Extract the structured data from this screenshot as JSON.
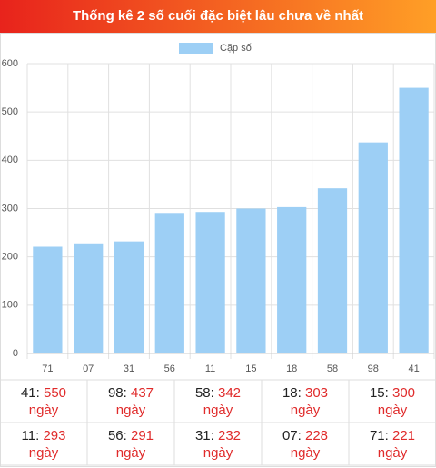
{
  "chart_data": {
    "type": "bar",
    "title": "Thống kê 2 số cuối đặc biệt lâu chưa về nhất",
    "categories": [
      "71",
      "07",
      "31",
      "56",
      "11",
      "15",
      "18",
      "58",
      "98",
      "41"
    ],
    "series": [
      {
        "name": "Cặp số",
        "color": "#9dcff5",
        "values": [
          221,
          228,
          232,
          291,
          293,
          300,
          303,
          342,
          437,
          550
        ]
      }
    ],
    "ylim": [
      0,
      600
    ],
    "yticks": [
      0,
      100,
      200,
      300,
      400,
      500,
      600
    ],
    "grid": true,
    "legend": "top"
  },
  "summary": {
    "unit": "ngày",
    "rows": [
      [
        [
          "41",
          550
        ],
        [
          "98",
          437
        ],
        [
          "58",
          342
        ],
        [
          "18",
          303
        ],
        [
          "15",
          300
        ]
      ],
      [
        [
          "11",
          293
        ],
        [
          "56",
          291
        ],
        [
          "31",
          232
        ],
        [
          "07",
          228
        ],
        [
          "71",
          221
        ]
      ]
    ]
  }
}
